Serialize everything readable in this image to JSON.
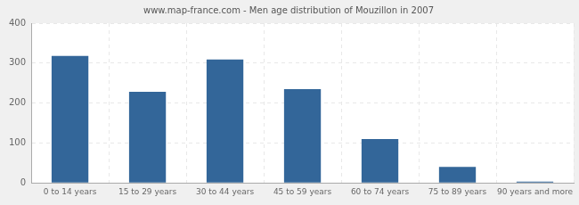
{
  "chart_data": {
    "type": "bar",
    "title": "www.map-france.com - Men age distribution of Mouzillon in 2007",
    "categories": [
      "0 to 14 years",
      "15 to 29 years",
      "30 to 44 years",
      "45 to 59 years",
      "60 to 74 years",
      "75 to 89 years",
      "90 years and more"
    ],
    "values": [
      318,
      228,
      309,
      235,
      110,
      40,
      3
    ],
    "color": "#336699",
    "ylim": [
      0,
      400
    ],
    "yticks": [
      0,
      100,
      200,
      300,
      400
    ],
    "grid": true
  }
}
